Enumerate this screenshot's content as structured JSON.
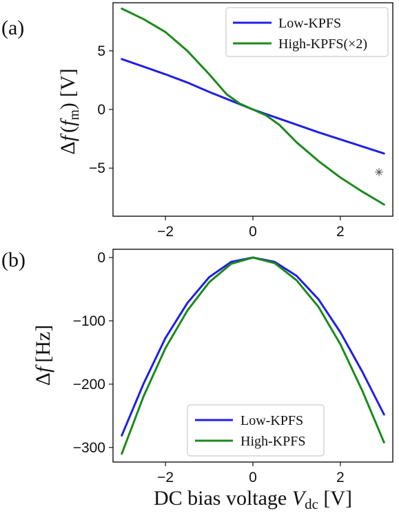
{
  "colors": {
    "low": "#1f1fe6",
    "high": "#1b8a1b"
  },
  "chart_data": [
    {
      "type": "line",
      "panel_label": "(a)",
      "ylabel_main": "Δ",
      "ylabel_f": "f",
      "ylabel_paren_open": "(",
      "ylabel_fm": "f",
      "ylabel_fm_sub": "m",
      "ylabel_paren_close": ")",
      "ylabel_unit": "[V]",
      "xlim": [
        -3.2,
        3.2
      ],
      "ylim": [
        -9.1,
        9.1
      ],
      "x_ticks": [
        -2,
        0,
        2
      ],
      "x_tick_labels": [
        "−2",
        "0",
        "2"
      ],
      "y_ticks": [
        5,
        0,
        -5
      ],
      "y_tick_labels": [
        "5",
        "0",
        "−5"
      ],
      "legend": "top-right",
      "series": [
        {
          "name": "Low-KPFS",
          "color_key": "low",
          "x": [
            -3,
            -2.5,
            -2,
            -1.5,
            -1,
            -0.5,
            0,
            0.5,
            1,
            1.5,
            2,
            2.5,
            3
          ],
          "y": [
            4.3,
            3.65,
            3.0,
            2.3,
            1.5,
            0.75,
            0.0,
            -0.65,
            -1.3,
            -1.95,
            -2.55,
            -3.15,
            -3.75
          ]
        },
        {
          "name": "High-KPFS(×2)",
          "color_key": "high",
          "x": [
            -3,
            -2.5,
            -2,
            -1.5,
            -1,
            -0.6,
            -0.3,
            0,
            0.3,
            0.6,
            1,
            1.5,
            2,
            2.5,
            3
          ],
          "y": [
            8.6,
            7.7,
            6.6,
            5.0,
            3.0,
            1.3,
            0.5,
            0.0,
            -0.5,
            -1.3,
            -2.8,
            -4.4,
            -5.8,
            -7.0,
            -8.1
          ]
        }
      ]
    },
    {
      "type": "line",
      "panel_label": "(b)",
      "ylabel_main": "Δ",
      "ylabel_f": "f",
      "ylabel_unit": "[Hz]",
      "xlabel_text": "DC bias voltage ",
      "xlabel_var": "V",
      "xlabel_sub": "dc",
      "xlabel_unit": " [V]",
      "xlim": [
        -3.2,
        3.2
      ],
      "ylim": [
        -323,
        13
      ],
      "x_ticks": [
        -2,
        0,
        2
      ],
      "x_tick_labels": [
        "−2",
        "0",
        "2"
      ],
      "y_ticks": [
        0,
        -100,
        -200,
        -300
      ],
      "y_tick_labels": [
        "0",
        "−100",
        "−200",
        "−300"
      ],
      "legend": "lower-center",
      "series": [
        {
          "name": "Low-KPFS",
          "color_key": "low",
          "x": [
            -3,
            -2.5,
            -2,
            -1.5,
            -1,
            -0.5,
            0,
            0.5,
            1,
            1.5,
            2,
            2.5,
            3
          ],
          "y": [
            -281,
            -199,
            -127,
            -72,
            -31,
            -7,
            0,
            -7,
            -29,
            -66,
            -118,
            -180,
            -248
          ]
        },
        {
          "name": "High-KPFS",
          "color_key": "high",
          "x": [
            -3,
            -2.5,
            -2,
            -1.5,
            -1,
            -0.5,
            0,
            0.5,
            1,
            1.5,
            2,
            2.5,
            3
          ],
          "y": [
            -310,
            -219,
            -143,
            -84,
            -39,
            -10,
            0,
            -9,
            -36,
            -78,
            -137,
            -210,
            -292
          ]
        }
      ]
    }
  ]
}
